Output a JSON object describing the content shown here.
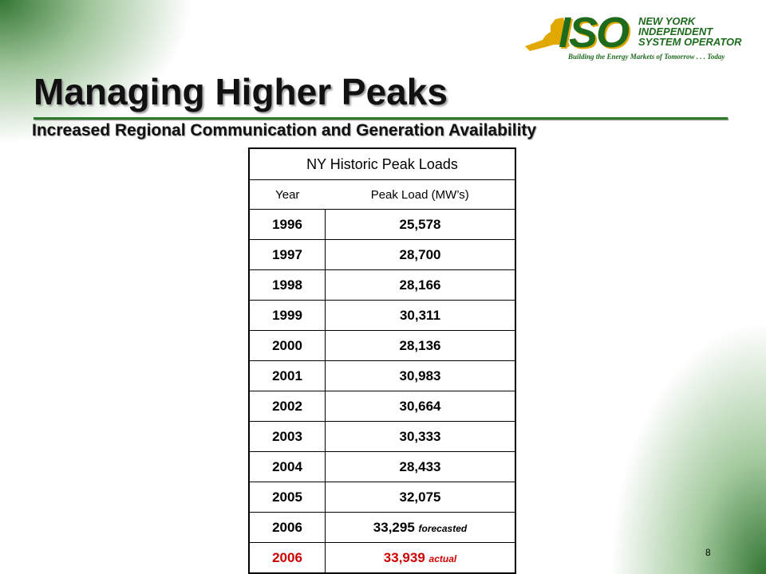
{
  "logo": {
    "org_line1": "NEW YORK",
    "org_line2": "INDEPENDENT",
    "org_line3": "SYSTEM OPERATOR",
    "acronym": "ISO",
    "tagline": "Building the Energy Markets of Tomorrow . . . Today",
    "colors": {
      "green": "#1e6b1e",
      "gold": "#e0a800"
    }
  },
  "title": "Managing Higher Peaks",
  "subtitle": "Increased Regional Communication and Generation Availability",
  "table": {
    "caption": "NY Historic Peak Loads",
    "headers": [
      "Year",
      "Peak Load (MW’s)"
    ],
    "rows": [
      {
        "year": "1996",
        "load": "25,578",
        "note": ""
      },
      {
        "year": "1997",
        "load": "28,700",
        "note": ""
      },
      {
        "year": "1998",
        "load": "28,166",
        "note": ""
      },
      {
        "year": "1999",
        "load": "30,311",
        "note": ""
      },
      {
        "year": "2000",
        "load": "28,136",
        "note": ""
      },
      {
        "year": "2001",
        "load": "30,983",
        "note": ""
      },
      {
        "year": "2002",
        "load": "30,664",
        "note": ""
      },
      {
        "year": "2003",
        "load": "30,333",
        "note": ""
      },
      {
        "year": "2004",
        "load": "28,433",
        "note": ""
      },
      {
        "year": "2005",
        "load": "32,075",
        "note": ""
      },
      {
        "year": "2006",
        "load": "33,295",
        "note": "forecasted"
      },
      {
        "year": "2006",
        "load": "33,939",
        "note": "actual",
        "highlight": true,
        "color": "#cc0000"
      }
    ]
  },
  "page_number": "8"
}
